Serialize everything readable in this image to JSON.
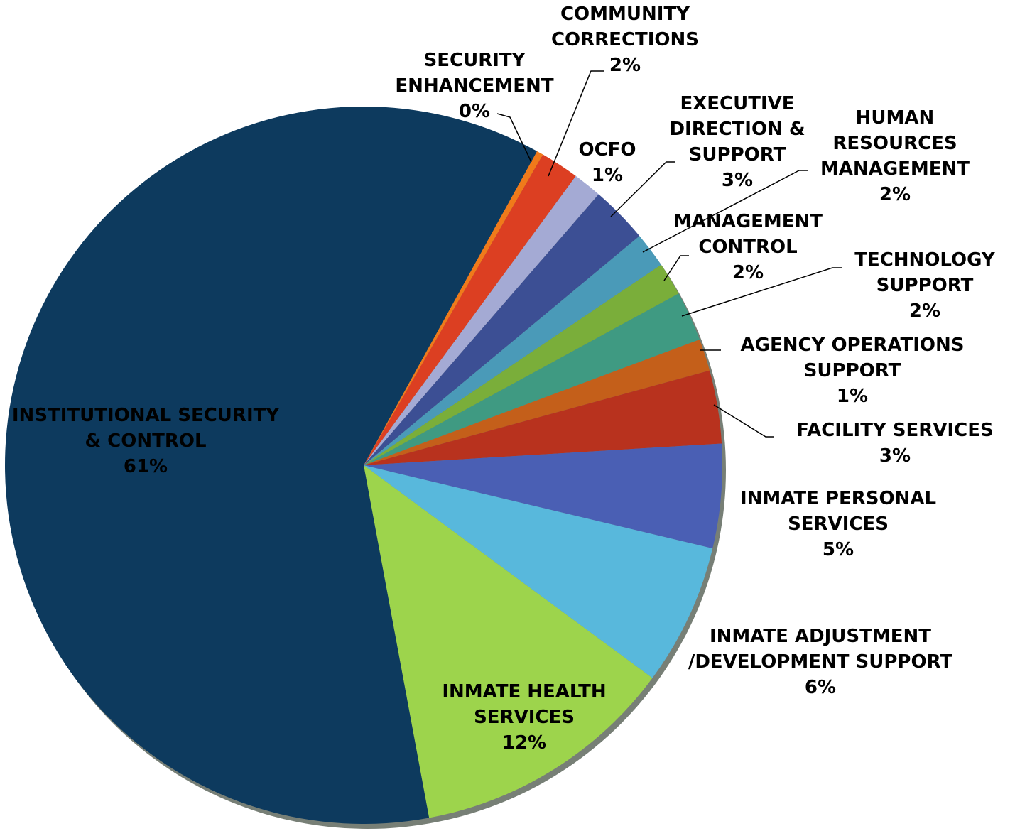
{
  "chart_data": {
    "type": "pie",
    "categories": [
      "SECURITY ENHANCEMENT",
      "COMMUNITY CORRECTIONS",
      "OCFO",
      "EXECUTIVE DIRECTION & SUPPORT",
      "HUMAN RESOURCES MANAGEMENT",
      "MANAGEMENT CONTROL",
      "TECHNOLOGY SUPPORT",
      "AGENCY OPERATIONS SUPPORT",
      "FACILITY SERVICES",
      "INMATE PERSONAL SERVICES",
      "INMATE ADJUSTMENT /DEVELOPMENT SUPPORT",
      "INMATE HEALTH SERVICES",
      "INSTITUTIONAL SECURITY & CONTROL"
    ],
    "values": [
      0.3,
      1.75,
      1.3,
      2.6,
      1.6,
      1.5,
      2.25,
      1.45,
      3.3,
      4.7,
      6.4,
      12.0,
      61.1
    ],
    "value_labels": [
      "0%",
      "2%",
      "1%",
      "3%",
      "2%",
      "2%",
      "2%",
      "1%",
      "3%",
      "5%",
      "6%",
      "12%",
      "61%"
    ],
    "colors": [
      "#f07a1a",
      "#dc3f22",
      "#a4aad4",
      "#3c4f94",
      "#4a9ab8",
      "#7aae3a",
      "#3f9a82",
      "#c45f1a",
      "#b8321e",
      "#4a5fb4",
      "#58b8dc",
      "#9dd44c",
      "#0d3a5e"
    ]
  }
}
